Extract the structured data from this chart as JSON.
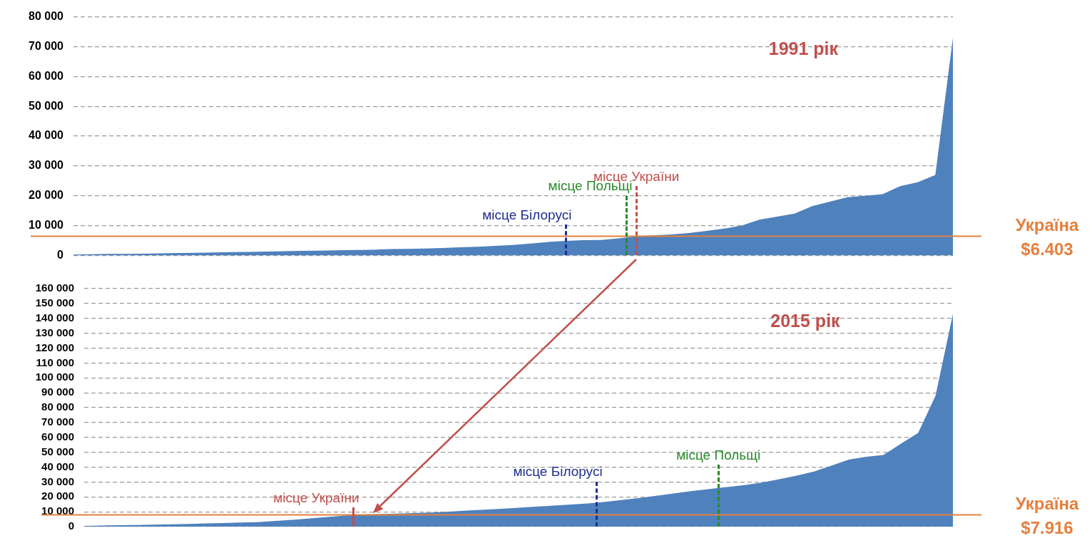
{
  "chart_data": [
    {
      "type": "area",
      "title": "1991 рік",
      "color": "#4f81bd",
      "grid": "y",
      "tick_labels": "y",
      "ylim": [
        0,
        80000
      ],
      "yticks": [
        {
          "value": 0,
          "label": "0"
        },
        {
          "value": 10000,
          "label": "10 000"
        },
        {
          "value": 20000,
          "label": "20 000"
        },
        {
          "value": 30000,
          "label": "30 000"
        },
        {
          "value": 40000,
          "label": "40 000"
        },
        {
          "value": 50000,
          "label": "50 000"
        },
        {
          "value": 60000,
          "label": "60 000"
        },
        {
          "value": 70000,
          "label": "70 000"
        },
        {
          "value": 80000,
          "label": "80 000"
        }
      ],
      "categories": [
        null,
        null,
        null,
        null,
        null,
        null,
        null,
        null,
        null,
        null,
        null,
        null,
        null,
        null,
        null,
        null,
        null,
        null,
        null,
        null,
        null,
        null,
        null,
        null,
        null,
        null,
        null,
        null,
        null,
        null,
        null,
        null,
        null,
        null,
        null,
        null,
        null,
        null,
        null,
        null,
        null,
        null,
        null,
        null,
        null,
        null,
        null,
        null,
        null,
        null,
        null
      ],
      "values": [
        300,
        400,
        500,
        500,
        600,
        700,
        800,
        900,
        1000,
        1100,
        1200,
        1300,
        1400,
        1500,
        1600,
        1700,
        1800,
        1900,
        2100,
        2200,
        2300,
        2500,
        2700,
        2900,
        3200,
        3500,
        4000,
        4500,
        4900,
        5100,
        5200,
        5700,
        6400,
        6700,
        7000,
        7500,
        8200,
        9000,
        10000,
        12000,
        13000,
        14000,
        16500,
        18000,
        19500,
        20000,
        20500,
        23200,
        24500,
        27000,
        73000
      ],
      "ref_lines": [
        {
          "axis": "y",
          "value": 6403,
          "label": "Україна $6.403",
          "color": "#e4803e",
          "line_style": "solid"
        }
      ],
      "annotations": [
        "місце Білорусі",
        "місце Польщі",
        "місце України"
      ]
    },
    {
      "type": "area",
      "title": "2015 рік",
      "color": "#4f81bd",
      "grid": "y",
      "tick_labels": "y",
      "ylim": [
        0,
        160000
      ],
      "yticks": [
        {
          "value": 0,
          "label": "0"
        },
        {
          "value": 10000,
          "label": "10 000"
        },
        {
          "value": 20000,
          "label": "20 000"
        },
        {
          "value": 30000,
          "label": "30 000"
        },
        {
          "value": 40000,
          "label": "40 000"
        },
        {
          "value": 50000,
          "label": "50 000"
        },
        {
          "value": 60000,
          "label": "60 000"
        },
        {
          "value": 70000,
          "label": "70 000"
        },
        {
          "value": 80000,
          "label": "80 000"
        },
        {
          "value": 90000,
          "label": "90 000"
        },
        {
          "value": 100000,
          "label": "100 000"
        },
        {
          "value": 110000,
          "label": "110 000"
        },
        {
          "value": 120000,
          "label": "120 000"
        },
        {
          "value": 130000,
          "label": "130 000"
        },
        {
          "value": 140000,
          "label": "140 000"
        },
        {
          "value": 150000,
          "label": "150 000"
        },
        {
          "value": 160000,
          "label": "160 000"
        }
      ],
      "categories": [
        null,
        null,
        null,
        null,
        null,
        null,
        null,
        null,
        null,
        null,
        null,
        null,
        null,
        null,
        null,
        null,
        null,
        null,
        null,
        null,
        null,
        null,
        null,
        null,
        null,
        null,
        null,
        null,
        null,
        null,
        null,
        null,
        null,
        null,
        null,
        null,
        null,
        null,
        null,
        null,
        null,
        null,
        null,
        null,
        null,
        null,
        null,
        null,
        null,
        null,
        null
      ],
      "values": [
        500,
        700,
        900,
        1100,
        1300,
        1500,
        1800,
        2100,
        2400,
        2700,
        3000,
        3800,
        4600,
        5500,
        6500,
        7400,
        8100,
        8400,
        8800,
        9100,
        9500,
        10100,
        10800,
        11400,
        12000,
        12700,
        13400,
        14100,
        14900,
        15600,
        16600,
        18000,
        19300,
        20800,
        22400,
        24000,
        25300,
        26600,
        27900,
        29600,
        31900,
        34300,
        37000,
        41000,
        45000,
        46900,
        48200,
        55700,
        63000,
        88000,
        143000
      ],
      "ref_lines": [
        {
          "axis": "y",
          "value": 7916,
          "label": "Україна $7.916",
          "color": "#e4803e",
          "line_style": "solid"
        }
      ],
      "annotations": [
        "місце України",
        "місце Білорусі",
        "місце Польщі"
      ]
    }
  ]
}
